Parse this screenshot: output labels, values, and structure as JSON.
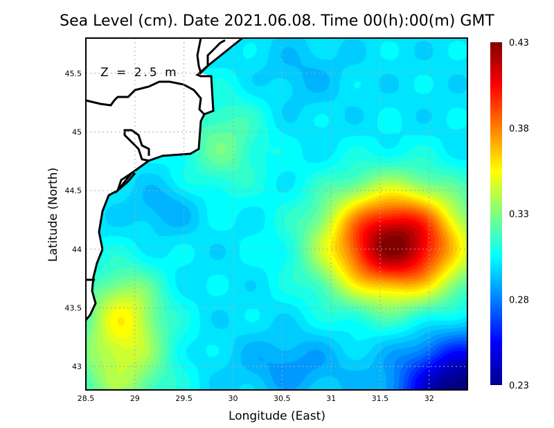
{
  "chart_data": {
    "type": "heatmap",
    "title": "Sea Level (cm). Date 2021.06.08. Time 00(h):00(m) GMT",
    "xlabel": "Longitude (East)",
    "ylabel": "Latitude (North)",
    "annotation": "Z = 2.5 m",
    "xlim": [
      28.5,
      32.39
    ],
    "ylim": [
      42.8,
      45.8
    ],
    "xticks": [
      "28.5",
      "29",
      "29.5",
      "30",
      "30.5",
      "31",
      "31.5",
      "32"
    ],
    "yticks": [
      "43",
      "43.5",
      "44",
      "44.5",
      "45",
      "45.5"
    ],
    "colorbar": {
      "min": 0.23,
      "max": 0.43,
      "ticks": [
        "0.23",
        "0.28",
        "0.33",
        "0.38",
        "0.43"
      ],
      "colormap": "jet"
    },
    "grid": true,
    "field": {
      "base": 0.3,
      "features": [
        {
          "lon": 31.65,
          "lat": 44.05,
          "amp": 0.13,
          "slon": 0.5,
          "slat": 0.33
        },
        {
          "lon": 32.35,
          "lat": 42.8,
          "amp": -0.075,
          "slon": 0.45,
          "slat": 0.3
        },
        {
          "lon": 28.85,
          "lat": 43.05,
          "amp": 0.04,
          "slon": 0.35,
          "slat": 0.4
        },
        {
          "lon": 28.9,
          "lat": 43.5,
          "amp": 0.03,
          "slon": 0.25,
          "slat": 0.25
        },
        {
          "lon": 29.9,
          "lat": 44.9,
          "amp": 0.025,
          "slon": 0.3,
          "slat": 0.3
        },
        {
          "lon": 29.3,
          "lat": 44.35,
          "amp": -0.012,
          "slon": 0.25,
          "slat": 0.15
        },
        {
          "lon": 30.6,
          "lat": 43.0,
          "amp": -0.015,
          "slon": 0.4,
          "slat": 0.2
        },
        {
          "lon": 30.7,
          "lat": 45.5,
          "amp": -0.008,
          "slon": 0.3,
          "slat": 0.2
        }
      ]
    }
  }
}
